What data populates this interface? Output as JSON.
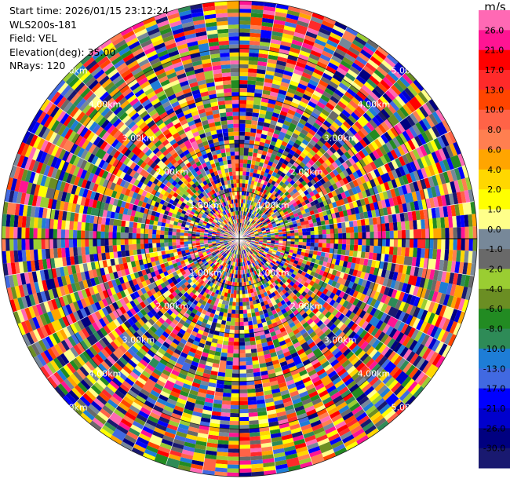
{
  "info": {
    "start_time": "Start time: 2026/01/15 23:12:24",
    "site": "WLS200s-181",
    "field": "Field: VEL",
    "elevation": "Elevation(deg): 35.00",
    "nrays": "NRays: 120"
  },
  "colorbar": {
    "title": "m/s",
    "ticks": [
      "26.0",
      "21.0",
      "17.0",
      "13.0",
      "10.0",
      "8.0",
      "6.0",
      "4.0",
      "2.0",
      "1.0",
      "0.0",
      "-1.0",
      "-2.0",
      "-4.0",
      "-6.0",
      "-8.0",
      "-10.0",
      "-13.0",
      "-17.0",
      "-21.0",
      "-26.0",
      "-30.0"
    ],
    "colors": [
      "#ff69b4",
      "#ff1493",
      "#ff0000",
      "#ff2a2a",
      "#ff4500",
      "#ff6347",
      "#ff7f50",
      "#ffa500",
      "#ffd700",
      "#ffff00",
      "#ffff8a",
      "#778899",
      "#696969",
      "#9acd32",
      "#6b8e23",
      "#228b22",
      "#2e8b57",
      "#1e7dd6",
      "#4169e1",
      "#0000ff",
      "#0000cd",
      "#000080",
      "#191970"
    ]
  },
  "chart_data": {
    "type": "polar-ppi",
    "field": "VEL",
    "units": "m/s",
    "nrays": 120,
    "range_ring_labels": [
      "1.00km",
      "2.00km",
      "3.00km",
      "4.00km",
      "5.00km"
    ],
    "range_rings_km": [
      1,
      2,
      3,
      4,
      5
    ],
    "max_range_km": 5.0,
    "palette_min": -30.0,
    "palette_max": 26.0
  }
}
